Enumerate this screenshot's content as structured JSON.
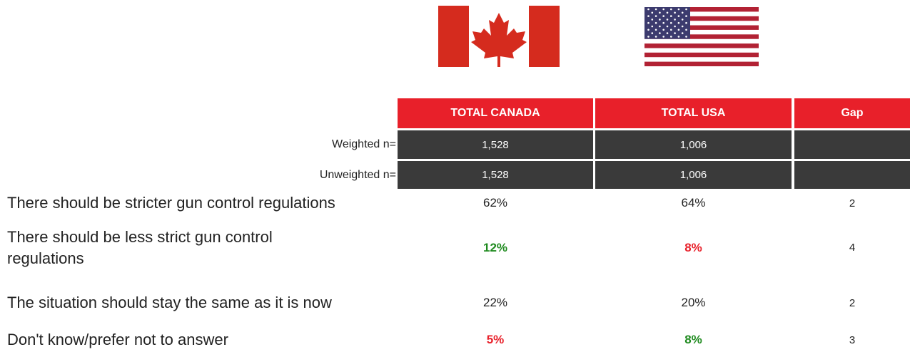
{
  "table": {
    "header": [
      "TOTAL CANADA",
      "TOTAL USA",
      "Gap"
    ],
    "base_rows": [
      {
        "label": "Weighted n=",
        "values": [
          "1,528",
          "1,006"
        ]
      },
      {
        "label": "Unweighted n=",
        "values": [
          "1,528",
          "1,006"
        ]
      }
    ],
    "rows": [
      {
        "label": "There should be stricter gun control regulations",
        "values": [
          "62%",
          "64%",
          "2"
        ]
      },
      {
        "label": "There should be less strict gun control regulations",
        "values": [
          "12%",
          "8%",
          "4"
        ],
        "emphasis": [
          "#1e8a1e",
          "#e8202a"
        ]
      },
      {
        "label": "The situation should stay the same as it is now",
        "values": [
          "22%",
          "20%",
          "2"
        ]
      },
      {
        "label": "Don't know/prefer not to answer",
        "values": [
          "5%",
          "8%",
          "3"
        ],
        "emphasis": [
          "#e8202a",
          "#1e8a1e"
        ]
      }
    ]
  }
}
